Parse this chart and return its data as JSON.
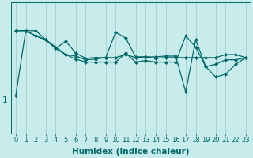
{
  "background_color": "#c8ecec",
  "grid_color": "#a0c8c8",
  "line_color": "#006868",
  "xlabel": "Humidex (Indice chaleur)",
  "x_ticks": [
    0,
    1,
    2,
    3,
    4,
    5,
    6,
    7,
    8,
    9,
    10,
    11,
    12,
    13,
    14,
    15,
    16,
    17,
    18,
    19,
    20,
    21,
    22,
    23
  ],
  "ylim": [
    0.55,
    2.3
  ],
  "yticks": [
    1.0
  ],
  "ytick_labels": [
    "1"
  ],
  "series_x": [
    0,
    1,
    2,
    3,
    4,
    5,
    6,
    7,
    8,
    9,
    10,
    11,
    12,
    13,
    14,
    15,
    16,
    17,
    18,
    19,
    20,
    21,
    22,
    23
  ],
  "series": [
    [
      1.05,
      1.92,
      1.92,
      1.8,
      1.7,
      1.6,
      1.58,
      1.53,
      1.54,
      1.56,
      1.56,
      1.6,
      1.56,
      1.57,
      1.55,
      1.56,
      1.56,
      1.56,
      1.56,
      1.56,
      1.56,
      1.6,
      1.6,
      1.56
    ],
    [
      1.92,
      1.92,
      1.85,
      1.8,
      1.68,
      1.6,
      1.54,
      1.5,
      1.5,
      1.5,
      1.5,
      1.62,
      1.5,
      1.52,
      1.5,
      1.5,
      1.5,
      1.85,
      1.7,
      1.44,
      1.47,
      1.53,
      1.53,
      1.56
    ],
    [
      1.92,
      1.92,
      1.85,
      1.8,
      1.68,
      1.78,
      1.62,
      1.55,
      1.56,
      1.56,
      1.9,
      1.82,
      1.57,
      1.57,
      1.57,
      1.58,
      1.58,
      1.1,
      1.8,
      1.44,
      1.3,
      1.34,
      1.47,
      1.56
    ]
  ],
  "font_size_xlabel": 7.5,
  "font_size_xtick": 6,
  "font_size_ytick": 7.5
}
